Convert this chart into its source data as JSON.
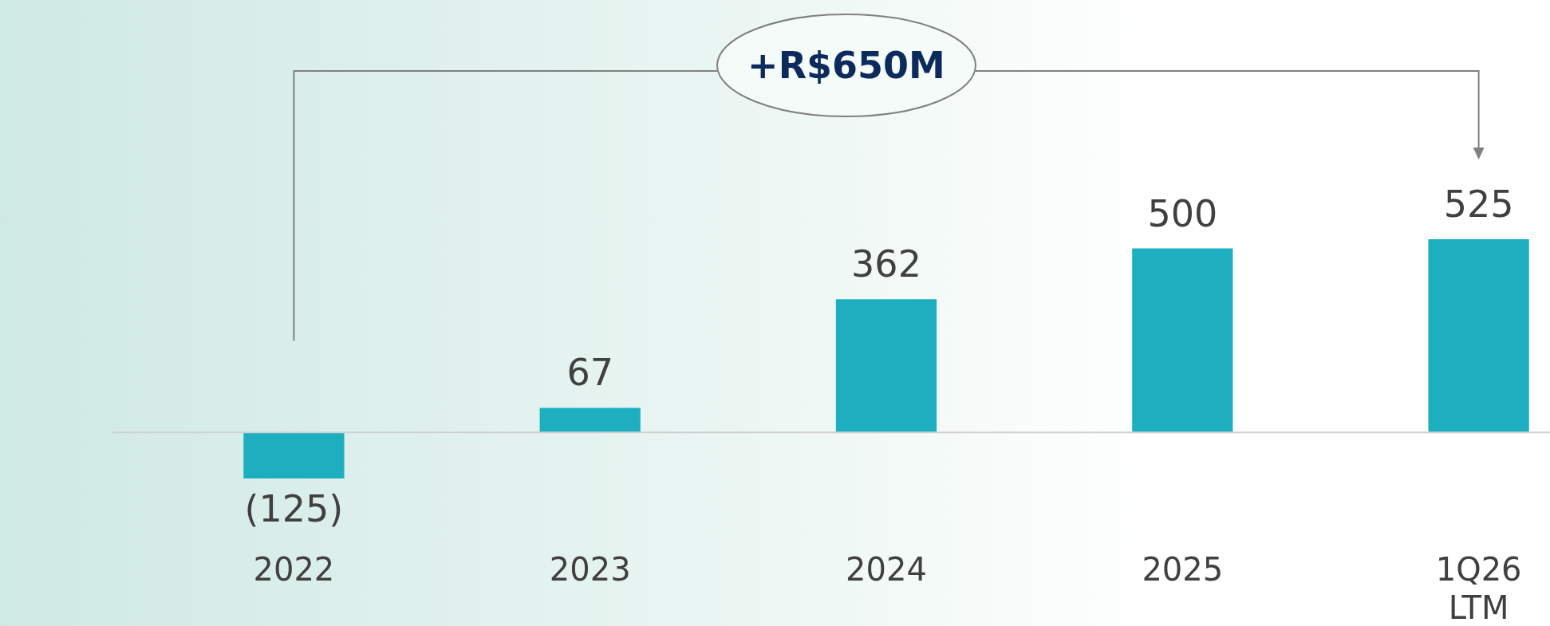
{
  "chart_data": {
    "type": "bar",
    "categories": [
      "2022",
      "2023",
      "2024",
      "2025",
      "1Q26 LTM"
    ],
    "values": [
      -125,
      67,
      362,
      500,
      525
    ],
    "value_labels": [
      "(125)",
      "67",
      "362",
      "500",
      "525"
    ],
    "color": "#1dafc0",
    "annotations": [
      "+R$650M"
    ]
  }
}
